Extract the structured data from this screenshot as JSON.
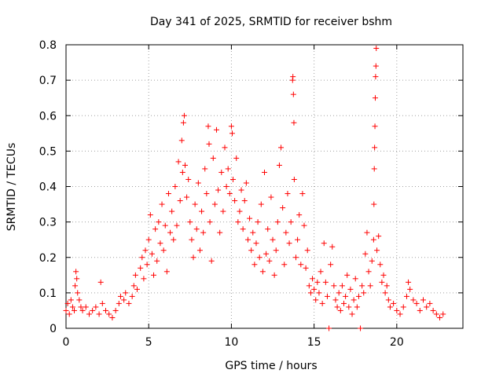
{
  "chart_data": {
    "type": "scatter",
    "title": "Day 341 of 2025, SRMTID for receiver bshm",
    "xlabel": "GPS time / hours",
    "ylabel": "SRMTID / TECUs",
    "xlim": [
      0,
      24
    ],
    "ylim": [
      0,
      0.8
    ],
    "xticks": [
      "0",
      "5",
      "10",
      "15",
      "20"
    ],
    "yticks": [
      "0",
      "0.1",
      "0.2",
      "0.3",
      "0.4",
      "0.5",
      "0.6",
      "0.7",
      "0.8"
    ],
    "grid": true,
    "marker": "+",
    "color": "#ff0000",
    "series": [
      {
        "name": "SRMTID",
        "points": [
          [
            0.0,
            0.05
          ],
          [
            0.1,
            0.07
          ],
          [
            0.2,
            0.04
          ],
          [
            0.3,
            0.08
          ],
          [
            0.4,
            0.06
          ],
          [
            0.5,
            0.05
          ],
          [
            0.55,
            0.12
          ],
          [
            0.6,
            0.16
          ],
          [
            0.65,
            0.14
          ],
          [
            0.7,
            0.1
          ],
          [
            0.8,
            0.08
          ],
          [
            0.9,
            0.06
          ],
          [
            1.0,
            0.05
          ],
          [
            1.2,
            0.06
          ],
          [
            1.4,
            0.04
          ],
          [
            1.6,
            0.05
          ],
          [
            1.8,
            0.06
          ],
          [
            2.0,
            0.04
          ],
          [
            2.2,
            0.07
          ],
          [
            2.1,
            0.13
          ],
          [
            2.4,
            0.05
          ],
          [
            2.6,
            0.04
          ],
          [
            2.8,
            0.03
          ],
          [
            3.0,
            0.05
          ],
          [
            3.2,
            0.07
          ],
          [
            3.3,
            0.09
          ],
          [
            3.5,
            0.08
          ],
          [
            3.6,
            0.1
          ],
          [
            3.8,
            0.07
          ],
          [
            4.0,
            0.09
          ],
          [
            4.1,
            0.12
          ],
          [
            4.2,
            0.15
          ],
          [
            4.3,
            0.11
          ],
          [
            4.5,
            0.17
          ],
          [
            4.6,
            0.2
          ],
          [
            4.7,
            0.14
          ],
          [
            4.8,
            0.22
          ],
          [
            4.9,
            0.18
          ],
          [
            5.0,
            0.25
          ],
          [
            5.1,
            0.32
          ],
          [
            5.2,
            0.21
          ],
          [
            5.3,
            0.15
          ],
          [
            5.4,
            0.28
          ],
          [
            5.5,
            0.19
          ],
          [
            5.6,
            0.3
          ],
          [
            5.7,
            0.24
          ],
          [
            5.8,
            0.35
          ],
          [
            5.9,
            0.22
          ],
          [
            6.0,
            0.29
          ],
          [
            6.1,
            0.16
          ],
          [
            6.2,
            0.38
          ],
          [
            6.3,
            0.27
          ],
          [
            6.4,
            0.33
          ],
          [
            6.5,
            0.25
          ],
          [
            6.6,
            0.4
          ],
          [
            6.7,
            0.29
          ],
          [
            6.8,
            0.47
          ],
          [
            6.9,
            0.36
          ],
          [
            7.0,
            0.53
          ],
          [
            7.05,
            0.44
          ],
          [
            7.1,
            0.58
          ],
          [
            7.15,
            0.6
          ],
          [
            7.2,
            0.46
          ],
          [
            7.3,
            0.37
          ],
          [
            7.4,
            0.42
          ],
          [
            7.5,
            0.3
          ],
          [
            7.6,
            0.25
          ],
          [
            7.7,
            0.2
          ],
          [
            7.8,
            0.35
          ],
          [
            7.9,
            0.28
          ],
          [
            8.0,
            0.41
          ],
          [
            8.1,
            0.22
          ],
          [
            8.2,
            0.33
          ],
          [
            8.3,
            0.27
          ],
          [
            8.4,
            0.45
          ],
          [
            8.5,
            0.38
          ],
          [
            8.6,
            0.57
          ],
          [
            8.65,
            0.52
          ],
          [
            8.7,
            0.3
          ],
          [
            8.8,
            0.19
          ],
          [
            8.9,
            0.48
          ],
          [
            9.0,
            0.35
          ],
          [
            9.1,
            0.56
          ],
          [
            9.2,
            0.39
          ],
          [
            9.3,
            0.27
          ],
          [
            9.4,
            0.44
          ],
          [
            9.5,
            0.33
          ],
          [
            9.6,
            0.51
          ],
          [
            9.7,
            0.4
          ],
          [
            9.8,
            0.45
          ],
          [
            9.9,
            0.38
          ],
          [
            10.0,
            0.57
          ],
          [
            10.05,
            0.55
          ],
          [
            10.1,
            0.42
          ],
          [
            10.2,
            0.36
          ],
          [
            10.3,
            0.48
          ],
          [
            10.4,
            0.3
          ],
          [
            10.5,
            0.33
          ],
          [
            10.6,
            0.39
          ],
          [
            10.7,
            0.28
          ],
          [
            10.8,
            0.36
          ],
          [
            10.9,
            0.41
          ],
          [
            11.0,
            0.25
          ],
          [
            11.1,
            0.31
          ],
          [
            11.2,
            0.22
          ],
          [
            11.3,
            0.27
          ],
          [
            11.4,
            0.18
          ],
          [
            11.5,
            0.24
          ],
          [
            11.6,
            0.3
          ],
          [
            11.7,
            0.2
          ],
          [
            11.8,
            0.35
          ],
          [
            11.9,
            0.16
          ],
          [
            12.0,
            0.44
          ],
          [
            12.1,
            0.21
          ],
          [
            12.2,
            0.28
          ],
          [
            12.3,
            0.19
          ],
          [
            12.4,
            0.37
          ],
          [
            12.5,
            0.25
          ],
          [
            12.6,
            0.15
          ],
          [
            12.7,
            0.22
          ],
          [
            12.8,
            0.3
          ],
          [
            12.9,
            0.46
          ],
          [
            13.0,
            0.51
          ],
          [
            13.1,
            0.34
          ],
          [
            13.2,
            0.18
          ],
          [
            13.3,
            0.27
          ],
          [
            13.4,
            0.38
          ],
          [
            13.5,
            0.24
          ],
          [
            13.6,
            0.3
          ],
          [
            13.7,
            0.7
          ],
          [
            13.72,
            0.71
          ],
          [
            13.75,
            0.66
          ],
          [
            13.78,
            0.58
          ],
          [
            13.8,
            0.42
          ],
          [
            13.9,
            0.2
          ],
          [
            14.0,
            0.25
          ],
          [
            14.1,
            0.32
          ],
          [
            14.2,
            0.18
          ],
          [
            14.3,
            0.38
          ],
          [
            14.4,
            0.29
          ],
          [
            14.5,
            0.17
          ],
          [
            14.6,
            0.22
          ],
          [
            14.7,
            0.12
          ],
          [
            14.8,
            0.1
          ],
          [
            14.9,
            0.14
          ],
          [
            15.0,
            0.11
          ],
          [
            15.1,
            0.08
          ],
          [
            15.2,
            0.13
          ],
          [
            15.3,
            0.1
          ],
          [
            15.4,
            0.16
          ],
          [
            15.5,
            0.07
          ],
          [
            15.6,
            0.24
          ],
          [
            15.7,
            0.13
          ],
          [
            15.8,
            0.09
          ],
          [
            15.9,
            0.0
          ],
          [
            16.0,
            0.18
          ],
          [
            16.1,
            0.23
          ],
          [
            16.2,
            0.12
          ],
          [
            16.3,
            0.08
          ],
          [
            16.4,
            0.06
          ],
          [
            16.5,
            0.1
          ],
          [
            16.6,
            0.05
          ],
          [
            16.7,
            0.12
          ],
          [
            16.8,
            0.07
          ],
          [
            16.9,
            0.09
          ],
          [
            17.0,
            0.15
          ],
          [
            17.1,
            0.06
          ],
          [
            17.2,
            0.11
          ],
          [
            17.3,
            0.04
          ],
          [
            17.4,
            0.08
          ],
          [
            17.5,
            0.14
          ],
          [
            17.6,
            0.06
          ],
          [
            17.7,
            0.09
          ],
          [
            17.8,
            0.0
          ],
          [
            17.9,
            0.12
          ],
          [
            18.0,
            0.1
          ],
          [
            18.1,
            0.21
          ],
          [
            18.2,
            0.27
          ],
          [
            18.3,
            0.16
          ],
          [
            18.4,
            0.12
          ],
          [
            18.5,
            0.19
          ],
          [
            18.6,
            0.25
          ],
          [
            18.62,
            0.35
          ],
          [
            18.64,
            0.45
          ],
          [
            18.66,
            0.51
          ],
          [
            18.68,
            0.57
          ],
          [
            18.7,
            0.65
          ],
          [
            18.72,
            0.71
          ],
          [
            18.74,
            0.74
          ],
          [
            18.76,
            0.79
          ],
          [
            18.8,
            0.22
          ],
          [
            18.9,
            0.26
          ],
          [
            19.0,
            0.18
          ],
          [
            19.1,
            0.13
          ],
          [
            19.2,
            0.15
          ],
          [
            19.3,
            0.1
          ],
          [
            19.4,
            0.12
          ],
          [
            19.5,
            0.08
          ],
          [
            19.6,
            0.06
          ],
          [
            19.8,
            0.07
          ],
          [
            20.0,
            0.05
          ],
          [
            20.2,
            0.04
          ],
          [
            20.4,
            0.06
          ],
          [
            20.6,
            0.09
          ],
          [
            20.7,
            0.13
          ],
          [
            20.8,
            0.11
          ],
          [
            21.0,
            0.08
          ],
          [
            21.2,
            0.07
          ],
          [
            21.4,
            0.05
          ],
          [
            21.6,
            0.08
          ],
          [
            21.8,
            0.06
          ],
          [
            22.0,
            0.07
          ],
          [
            22.2,
            0.05
          ],
          [
            22.4,
            0.04
          ],
          [
            22.6,
            0.03
          ],
          [
            22.8,
            0.04
          ]
        ]
      }
    ]
  }
}
